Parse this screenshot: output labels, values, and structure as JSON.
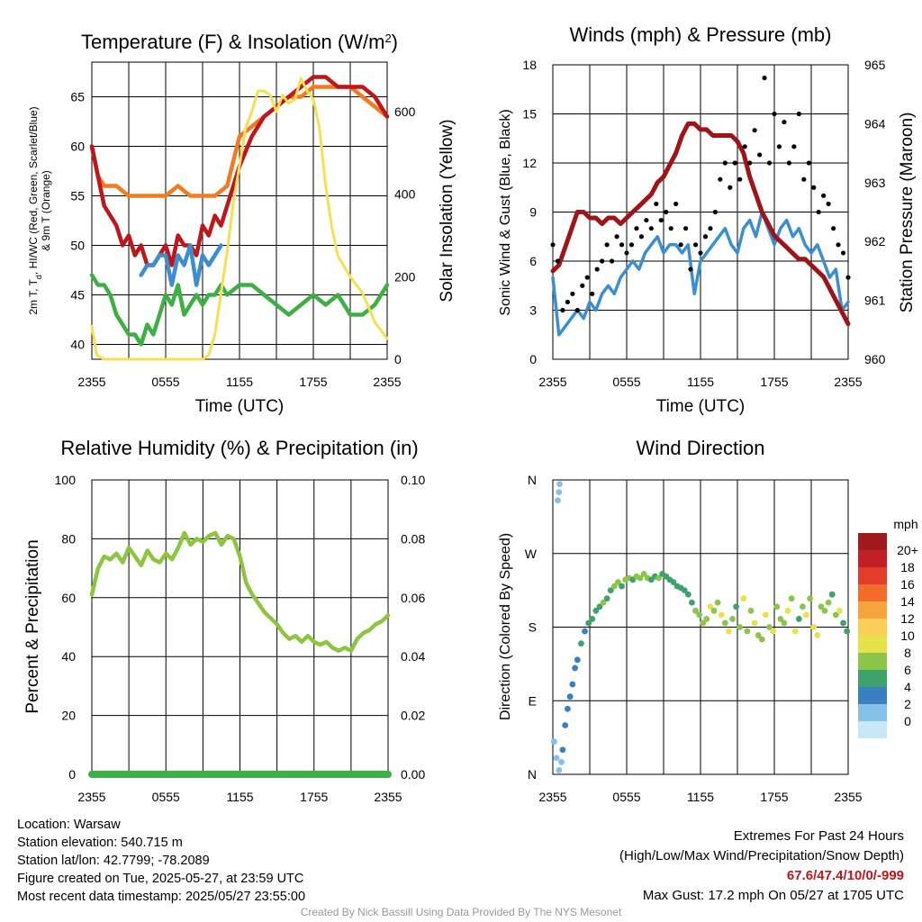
{
  "chart_data": [
    {
      "type": "line",
      "title": "Temperature (F) & Insolation (W/m",
      "title_sup": "2",
      "title_end": ")",
      "xlabel": "Time (UTC)",
      "ylabel_line1": "2m T, T",
      "ylabel_sub": "d",
      "ylabel_rest": ", HI/WC (Red, Green, Scarlet/Blue)",
      "ylabel_line2": "& 9m T (Orange)",
      "y2label": "Solar Insolation (Yellow)",
      "xticks": [
        "2355",
        "0555",
        "1155",
        "1755",
        "2355"
      ],
      "xrange": [
        0,
        24
      ],
      "ylim": [
        38.5,
        68.5
      ],
      "yticks": [
        40,
        45,
        50,
        55,
        60,
        65
      ],
      "y2lim": [
        0,
        720
      ],
      "y2ticks": [
        0,
        200,
        400,
        600
      ],
      "series": [
        {
          "color": "#f47a1f",
          "x": [
            0,
            0.5,
            1,
            1.5,
            2,
            3,
            4,
            5,
            6,
            7,
            8,
            9,
            10,
            11,
            12,
            13,
            14,
            15,
            16,
            17,
            18,
            19,
            20,
            21,
            22,
            23,
            24
          ],
          "y": [
            60,
            57,
            56,
            56,
            56,
            55,
            55,
            55,
            55,
            56,
            55,
            55,
            55,
            56,
            61,
            62,
            63,
            64,
            65,
            65,
            66,
            66,
            66,
            66,
            65,
            64,
            63
          ]
        },
        {
          "color": "#c0151b",
          "x": [
            0,
            0.5,
            1,
            1.5,
            2,
            2.5,
            3,
            3.5,
            4,
            4.5,
            5,
            5.5,
            6,
            6.5,
            7,
            7.5,
            8,
            8.5,
            9,
            9.5,
            10,
            10.5,
            11,
            12,
            13,
            14,
            15,
            16,
            17,
            18,
            19,
            20,
            21,
            22,
            23,
            24
          ],
          "y": [
            60,
            57,
            54,
            53,
            52,
            50,
            51,
            49,
            50,
            48,
            48,
            49,
            50,
            48,
            51,
            50,
            50,
            49,
            52,
            51,
            53,
            52,
            54,
            58,
            61,
            63,
            64,
            65,
            66,
            67,
            67,
            66,
            66,
            66,
            65,
            63
          ]
        },
        {
          "color": "#3b8fd1",
          "x": [
            4,
            4.5,
            5,
            5.5,
            6,
            6.5,
            7,
            7.5,
            8,
            8.5,
            9,
            9.5,
            10,
            10.5
          ],
          "y": [
            47,
            48,
            48,
            49,
            49,
            46,
            49,
            48,
            50,
            46,
            49,
            48,
            49,
            50
          ]
        },
        {
          "color": "#3db043",
          "x": [
            0,
            0.5,
            1,
            1.5,
            2,
            2.5,
            3,
            3.5,
            4,
            4.5,
            5,
            5.5,
            6,
            6.5,
            7,
            7.5,
            8,
            8.5,
            9,
            9.5,
            10,
            10.5,
            11,
            12,
            13,
            14,
            15,
            16,
            17,
            18,
            19,
            20,
            21,
            22,
            23,
            24
          ],
          "y": [
            47,
            46,
            46,
            45,
            43,
            42,
            41,
            41,
            40,
            42,
            41,
            43,
            45,
            44,
            46,
            43,
            44,
            45,
            44,
            45,
            45,
            46,
            45,
            46,
            46,
            45,
            44,
            43,
            44,
            45,
            44,
            45,
            43,
            43,
            44,
            46
          ]
        },
        {
          "color": "#f5e050",
          "x": [
            0,
            0.4,
            1,
            2,
            3,
            4,
            5,
            6,
            7,
            8,
            9,
            9.5,
            10,
            10.5,
            11,
            11.5,
            12,
            12.5,
            13,
            13.5,
            14,
            14.5,
            15,
            15.5,
            16,
            16.5,
            17,
            17.5,
            18,
            18.5,
            19,
            19.5,
            20,
            21,
            22,
            23,
            24
          ],
          "y2": [
            80,
            10,
            0,
            0,
            0,
            0,
            0,
            0,
            0,
            0,
            0,
            10,
            60,
            160,
            260,
            380,
            470,
            560,
            600,
            650,
            650,
            640,
            600,
            640,
            620,
            630,
            680,
            650,
            630,
            560,
            420,
            320,
            250,
            200,
            160,
            90,
            50
          ]
        }
      ]
    },
    {
      "type": "line",
      "title": "Winds (mph) & Pressure (mb)",
      "xlabel": "Time (UTC)",
      "ylabel": "Sonic Wind & Gust (Blue, Black)",
      "y2label": "Station Pressure (Maroon)",
      "xticks": [
        "2355",
        "0555",
        "1155",
        "1755",
        "2355"
      ],
      "xrange": [
        0,
        24
      ],
      "ylim": [
        0,
        18
      ],
      "yticks": [
        0,
        3,
        6,
        9,
        12,
        15,
        18
      ],
      "y2lim": [
        960,
        965
      ],
      "y2ticks": [
        960,
        961,
        962,
        963,
        964,
        965
      ],
      "wind": {
        "color": "#3b8fd1",
        "x": [
          0,
          0.5,
          1,
          1.5,
          2,
          2.5,
          3,
          3.5,
          4,
          4.5,
          5,
          5.5,
          6,
          6.5,
          7,
          7.5,
          8,
          8.5,
          9,
          9.5,
          10,
          10.5,
          11,
          11.5,
          12,
          12.5,
          13,
          13.5,
          14,
          14.5,
          15,
          15.5,
          16,
          16.5,
          17,
          17.5,
          18,
          18.5,
          19,
          19.5,
          20,
          20.5,
          21,
          21.5,
          22,
          22.5,
          23,
          23.5,
          24
        ],
        "y": [
          5,
          1.5,
          2,
          2.5,
          3,
          2.5,
          3.5,
          3,
          4,
          4.5,
          4,
          5,
          5.5,
          6,
          5.5,
          6.5,
          7,
          7.5,
          6.5,
          7,
          7,
          6.5,
          7,
          4,
          6,
          6.5,
          7,
          7.5,
          8,
          7,
          6.5,
          8,
          8.5,
          7.5,
          9,
          8,
          7,
          8,
          8.5,
          7.5,
          8,
          7,
          6.5,
          7,
          6,
          5,
          5.5,
          3,
          3.5
        ]
      },
      "gust": {
        "color": "#000000",
        "x": [
          0,
          0.4,
          0.8,
          1.2,
          1.6,
          2,
          2.4,
          2.8,
          3.2,
          3.6,
          4,
          4.4,
          4.8,
          5.2,
          5.6,
          6,
          6.4,
          6.8,
          7.2,
          7.6,
          8,
          8.4,
          8.8,
          9.2,
          9.6,
          10,
          10.4,
          10.8,
          11.2,
          11.6,
          12,
          12.4,
          12.8,
          13.2,
          13.6,
          14,
          14.4,
          14.8,
          15.2,
          15.6,
          16,
          16.4,
          16.8,
          17.2,
          17.6,
          18,
          18.4,
          18.8,
          19.2,
          19.6,
          20,
          20.4,
          20.8,
          21.2,
          21.6,
          22,
          22.4,
          22.8,
          23.2,
          23.6,
          24
        ],
        "y": [
          7,
          6,
          3,
          3.5,
          4,
          3,
          4.5,
          5,
          4,
          5.5,
          6,
          7,
          6,
          7.5,
          7,
          6.5,
          7,
          8,
          7.5,
          8.5,
          8,
          9.5,
          8.5,
          9,
          8,
          9.5,
          7,
          8,
          5.5,
          7,
          6.5,
          7.5,
          8,
          9,
          11,
          12,
          10.5,
          12,
          11,
          13,
          12,
          14,
          12.5,
          17.2,
          12,
          15,
          13,
          14.5,
          12,
          13,
          15,
          11,
          12,
          10.5,
          9,
          10,
          9.5,
          8,
          7,
          6.5,
          5
        ]
      },
      "pressure": {
        "color": "#a01418",
        "x": [
          0,
          0.5,
          1,
          1.5,
          2,
          2.5,
          3,
          3.5,
          4,
          4.5,
          5,
          5.5,
          6,
          6.5,
          7,
          7.5,
          8,
          8.5,
          9,
          9.5,
          10,
          10.5,
          11,
          11.5,
          12,
          12.5,
          13,
          13.5,
          14,
          14.5,
          15,
          15.5,
          16,
          16.5,
          17,
          17.5,
          18,
          18.5,
          19,
          19.5,
          20,
          20.5,
          21,
          21.5,
          22,
          22.5,
          23,
          23.5,
          24
        ],
        "y": [
          961.5,
          961.6,
          961.9,
          962.2,
          962.5,
          962.5,
          962.4,
          962.4,
          962.3,
          962.4,
          962.4,
          962.3,
          962.4,
          962.5,
          962.6,
          962.7,
          962.8,
          963.0,
          963.1,
          963.3,
          963.5,
          963.8,
          964.0,
          964.0,
          963.9,
          963.9,
          963.8,
          963.8,
          963.8,
          963.8,
          963.7,
          963.5,
          963.1,
          962.8,
          962.5,
          962.3,
          962.1,
          962.0,
          961.9,
          961.8,
          961.7,
          961.7,
          961.6,
          961.5,
          961.4,
          961.2,
          961.0,
          960.8,
          960.6
        ]
      }
    },
    {
      "type": "line",
      "title": "Relative Humidity (%) & Precipitation (in)",
      "ylabel": "Percent & Precipitation",
      "xticks": [
        "2355",
        "0555",
        "1155",
        "1755",
        "2355"
      ],
      "xrange": [
        0,
        24
      ],
      "ylim": [
        0,
        100
      ],
      "yticks": [
        0,
        20,
        40,
        60,
        80,
        100
      ],
      "y2lim": [
        0,
        0.1
      ],
      "y2ticks": [
        "0.00",
        "0.02",
        "0.04",
        "0.06",
        "0.08",
        "0.10"
      ],
      "humidity": {
        "color": "#8cc63f",
        "x": [
          0,
          0.5,
          1,
          1.5,
          2,
          2.5,
          3,
          3.5,
          4,
          4.5,
          5,
          5.5,
          6,
          6.5,
          7,
          7.5,
          8,
          8.5,
          9,
          9.5,
          10,
          10.5,
          11,
          11.5,
          12,
          12.5,
          13,
          13.5,
          14,
          14.5,
          15,
          15.5,
          16,
          16.5,
          17,
          17.5,
          18,
          18.5,
          19,
          19.5,
          20,
          20.5,
          21,
          21.5,
          22,
          22.5,
          23,
          23.5,
          24
        ],
        "y": [
          61,
          70,
          74,
          73,
          75,
          72,
          77,
          74,
          71,
          76,
          73,
          72,
          75,
          73,
          77,
          82,
          78,
          80,
          79,
          81,
          82,
          78,
          81,
          80,
          74,
          65,
          61,
          58,
          55,
          53,
          51,
          48,
          46,
          47,
          45,
          47,
          45,
          44,
          45,
          43,
          42,
          43,
          42,
          46,
          48,
          49,
          51,
          52,
          54
        ]
      },
      "precipitation": {
        "color": "#3db043",
        "x": [
          0,
          24
        ],
        "y": [
          0,
          0
        ]
      }
    },
    {
      "type": "scatter",
      "title": "Wind Direction",
      "ylabel": "Direction (Colored By Speed)",
      "xticks": [
        "2355",
        "0555",
        "1155",
        "1755",
        "2355"
      ],
      "xrange": [
        0,
        24
      ],
      "ylim": [
        0,
        360
      ],
      "ytick_labels": [
        "N",
        "E",
        "S",
        "W",
        "N"
      ],
      "legend_title": "mph",
      "legend_labels": [
        "20+",
        "18",
        "16",
        "14",
        "12",
        "10",
        "8",
        "6",
        "4",
        "2",
        "0"
      ],
      "legend_colors": [
        "#9e1a1d",
        "#c21f26",
        "#e33c2d",
        "#f36c2c",
        "#f8a43e",
        "#fbcf57",
        "#e8e24a",
        "#8bc64b",
        "#3ea36b",
        "#3a7fc1",
        "#86c2e8",
        "#c6e8f7"
      ],
      "x": [
        0.1,
        0.3,
        0.5,
        0.7,
        0.8,
        1.0,
        1.2,
        1.4,
        1.6,
        1.8,
        2.0,
        2.3,
        2.6,
        2.9,
        3.2,
        3.5,
        3.8,
        4.1,
        4.4,
        4.7,
        5.0,
        5.3,
        5.6,
        5.9,
        6.2,
        6.5,
        6.8,
        7.1,
        7.4,
        7.7,
        8.0,
        8.3,
        8.6,
        8.9,
        9.2,
        9.5,
        9.8,
        10.1,
        10.4,
        10.7,
        11.0,
        11.3,
        11.6,
        11.9,
        12.2,
        12.5,
        12.8,
        13.1,
        13.4,
        13.7,
        14.0,
        14.3,
        14.6,
        14.9,
        15.2,
        15.5,
        15.8,
        16.1,
        16.4,
        16.7,
        17.0,
        17.3,
        17.6,
        17.9,
        18.2,
        18.5,
        18.8,
        19.1,
        19.4,
        19.7,
        20.0,
        20.3,
        20.6,
        20.9,
        21.2,
        21.5,
        21.8,
        22.1,
        22.4,
        22.7,
        23.0,
        23.3,
        23.6,
        23.9,
        0.4,
        0.5,
        0.55
      ],
      "y": [
        40,
        20,
        5,
        15,
        30,
        60,
        80,
        95,
        110,
        130,
        140,
        160,
        175,
        185,
        190,
        200,
        205,
        210,
        215,
        225,
        230,
        235,
        230,
        238,
        240,
        238,
        242,
        240,
        245,
        240,
        238,
        242,
        240,
        245,
        242,
        238,
        235,
        230,
        228,
        225,
        220,
        210,
        200,
        195,
        185,
        190,
        205,
        200,
        210,
        195,
        185,
        175,
        190,
        205,
        180,
        215,
        175,
        200,
        185,
        170,
        165,
        195,
        180,
        175,
        205,
        190,
        185,
        200,
        215,
        175,
        190,
        205,
        195,
        215,
        180,
        170,
        205,
        200,
        210,
        220,
        195,
        200,
        185,
        175,
        335,
        345,
        355
      ],
      "speed": [
        1,
        1,
        0,
        1,
        2,
        2,
        2,
        3,
        2,
        3,
        3,
        4,
        3,
        4,
        5,
        5,
        5,
        6,
        5,
        5,
        6,
        6,
        5,
        6,
        6,
        5,
        6,
        7,
        6,
        6,
        5,
        5,
        6,
        5,
        4,
        4,
        4,
        5,
        4,
        4,
        4,
        5,
        7,
        6,
        6,
        7,
        8,
        6,
        7,
        8,
        6,
        8,
        7,
        5,
        6,
        8,
        7,
        6,
        9,
        6,
        7,
        8,
        6,
        8,
        7,
        6,
        6,
        9,
        7,
        8,
        5,
        7,
        8,
        6,
        8,
        8,
        7,
        6,
        6,
        5,
        7,
        8,
        5,
        4,
        1,
        1,
        1
      ]
    }
  ],
  "footer": {
    "location": "Location: Warsaw",
    "elevation": "Station elevation: 540.715 m",
    "latlon": "Station lat/lon: 42.7799; -78.2089",
    "created": "Figure created on Tue, 2025-05-27, at 23:59 UTC",
    "recent": "Most recent data timestamp: 2025/05/27 23:55:00",
    "extremes_title": "Extremes For Past 24 Hours",
    "extremes_legend": "(High/Low/Max Wind/Precipitation/Snow Depth)",
    "extremes_values": "67.6/47.4/10/0/-999",
    "max_gust": "Max Gust: 17.2 mph On 05/27 at 1705 UTC",
    "credit": "Created By Nick Bassill Using Data Provided By The NYS Mesonet"
  }
}
